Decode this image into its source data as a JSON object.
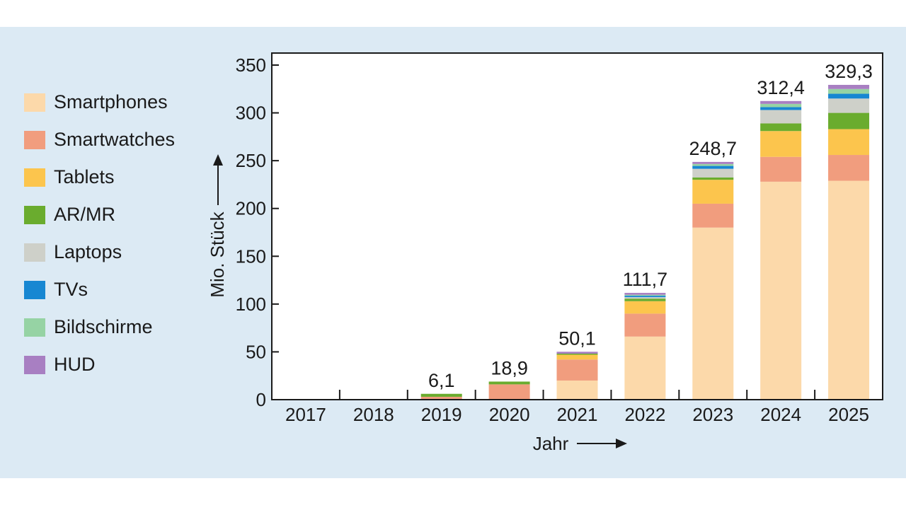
{
  "chart_data": {
    "type": "bar",
    "stacked": true,
    "xlabel": "Jahr",
    "ylabel": "Mio. Stück",
    "ylim": [
      0,
      350
    ],
    "yticks": [
      "0",
      "50",
      "100",
      "150",
      "200",
      "250",
      "300",
      "350"
    ],
    "grid": false,
    "legend_position": "left",
    "categories": [
      "2017",
      "2018",
      "2019",
      "2020",
      "2021",
      "2022",
      "2023",
      "2024",
      "2025"
    ],
    "totals": [
      "",
      "",
      "6,1",
      "18,9",
      "50,1",
      "111,7",
      "248,7",
      "312,4",
      "329,3"
    ],
    "series": [
      {
        "name": "Smartphones",
        "color": "#fcd9aa",
        "values": [
          0,
          0,
          0,
          0,
          20,
          66,
          180,
          228,
          229
        ]
      },
      {
        "name": "Smartwatches",
        "color": "#f19d7e",
        "values": [
          0,
          0,
          3,
          16,
          22,
          24,
          25,
          26,
          27
        ]
      },
      {
        "name": "Tablets",
        "color": "#fcc54d",
        "values": [
          0,
          0,
          0,
          0,
          5,
          13,
          25,
          27,
          27
        ]
      },
      {
        "name": "AR/MR",
        "color": "#6aac2e",
        "values": [
          0,
          0,
          3.1,
          2.9,
          1.1,
          2.7,
          2.5,
          8,
          17
        ]
      },
      {
        "name": "Laptops",
        "color": "#ced0c9",
        "values": [
          0,
          0,
          0,
          0,
          0,
          1.5,
          9,
          14,
          15
        ]
      },
      {
        "name": "TVs",
        "color": "#1787d2",
        "values": [
          0,
          0,
          0,
          0,
          0,
          1.5,
          3,
          3,
          5
        ]
      },
      {
        "name": "Bildschirme",
        "color": "#96d3a4",
        "values": [
          0,
          0,
          0,
          0,
          0,
          1,
          2,
          3.4,
          5
        ]
      },
      {
        "name": "HUD",
        "color": "#a87fc2",
        "values": [
          0,
          0,
          0,
          0,
          2,
          2,
          2.2,
          3,
          4.3
        ]
      }
    ]
  }
}
